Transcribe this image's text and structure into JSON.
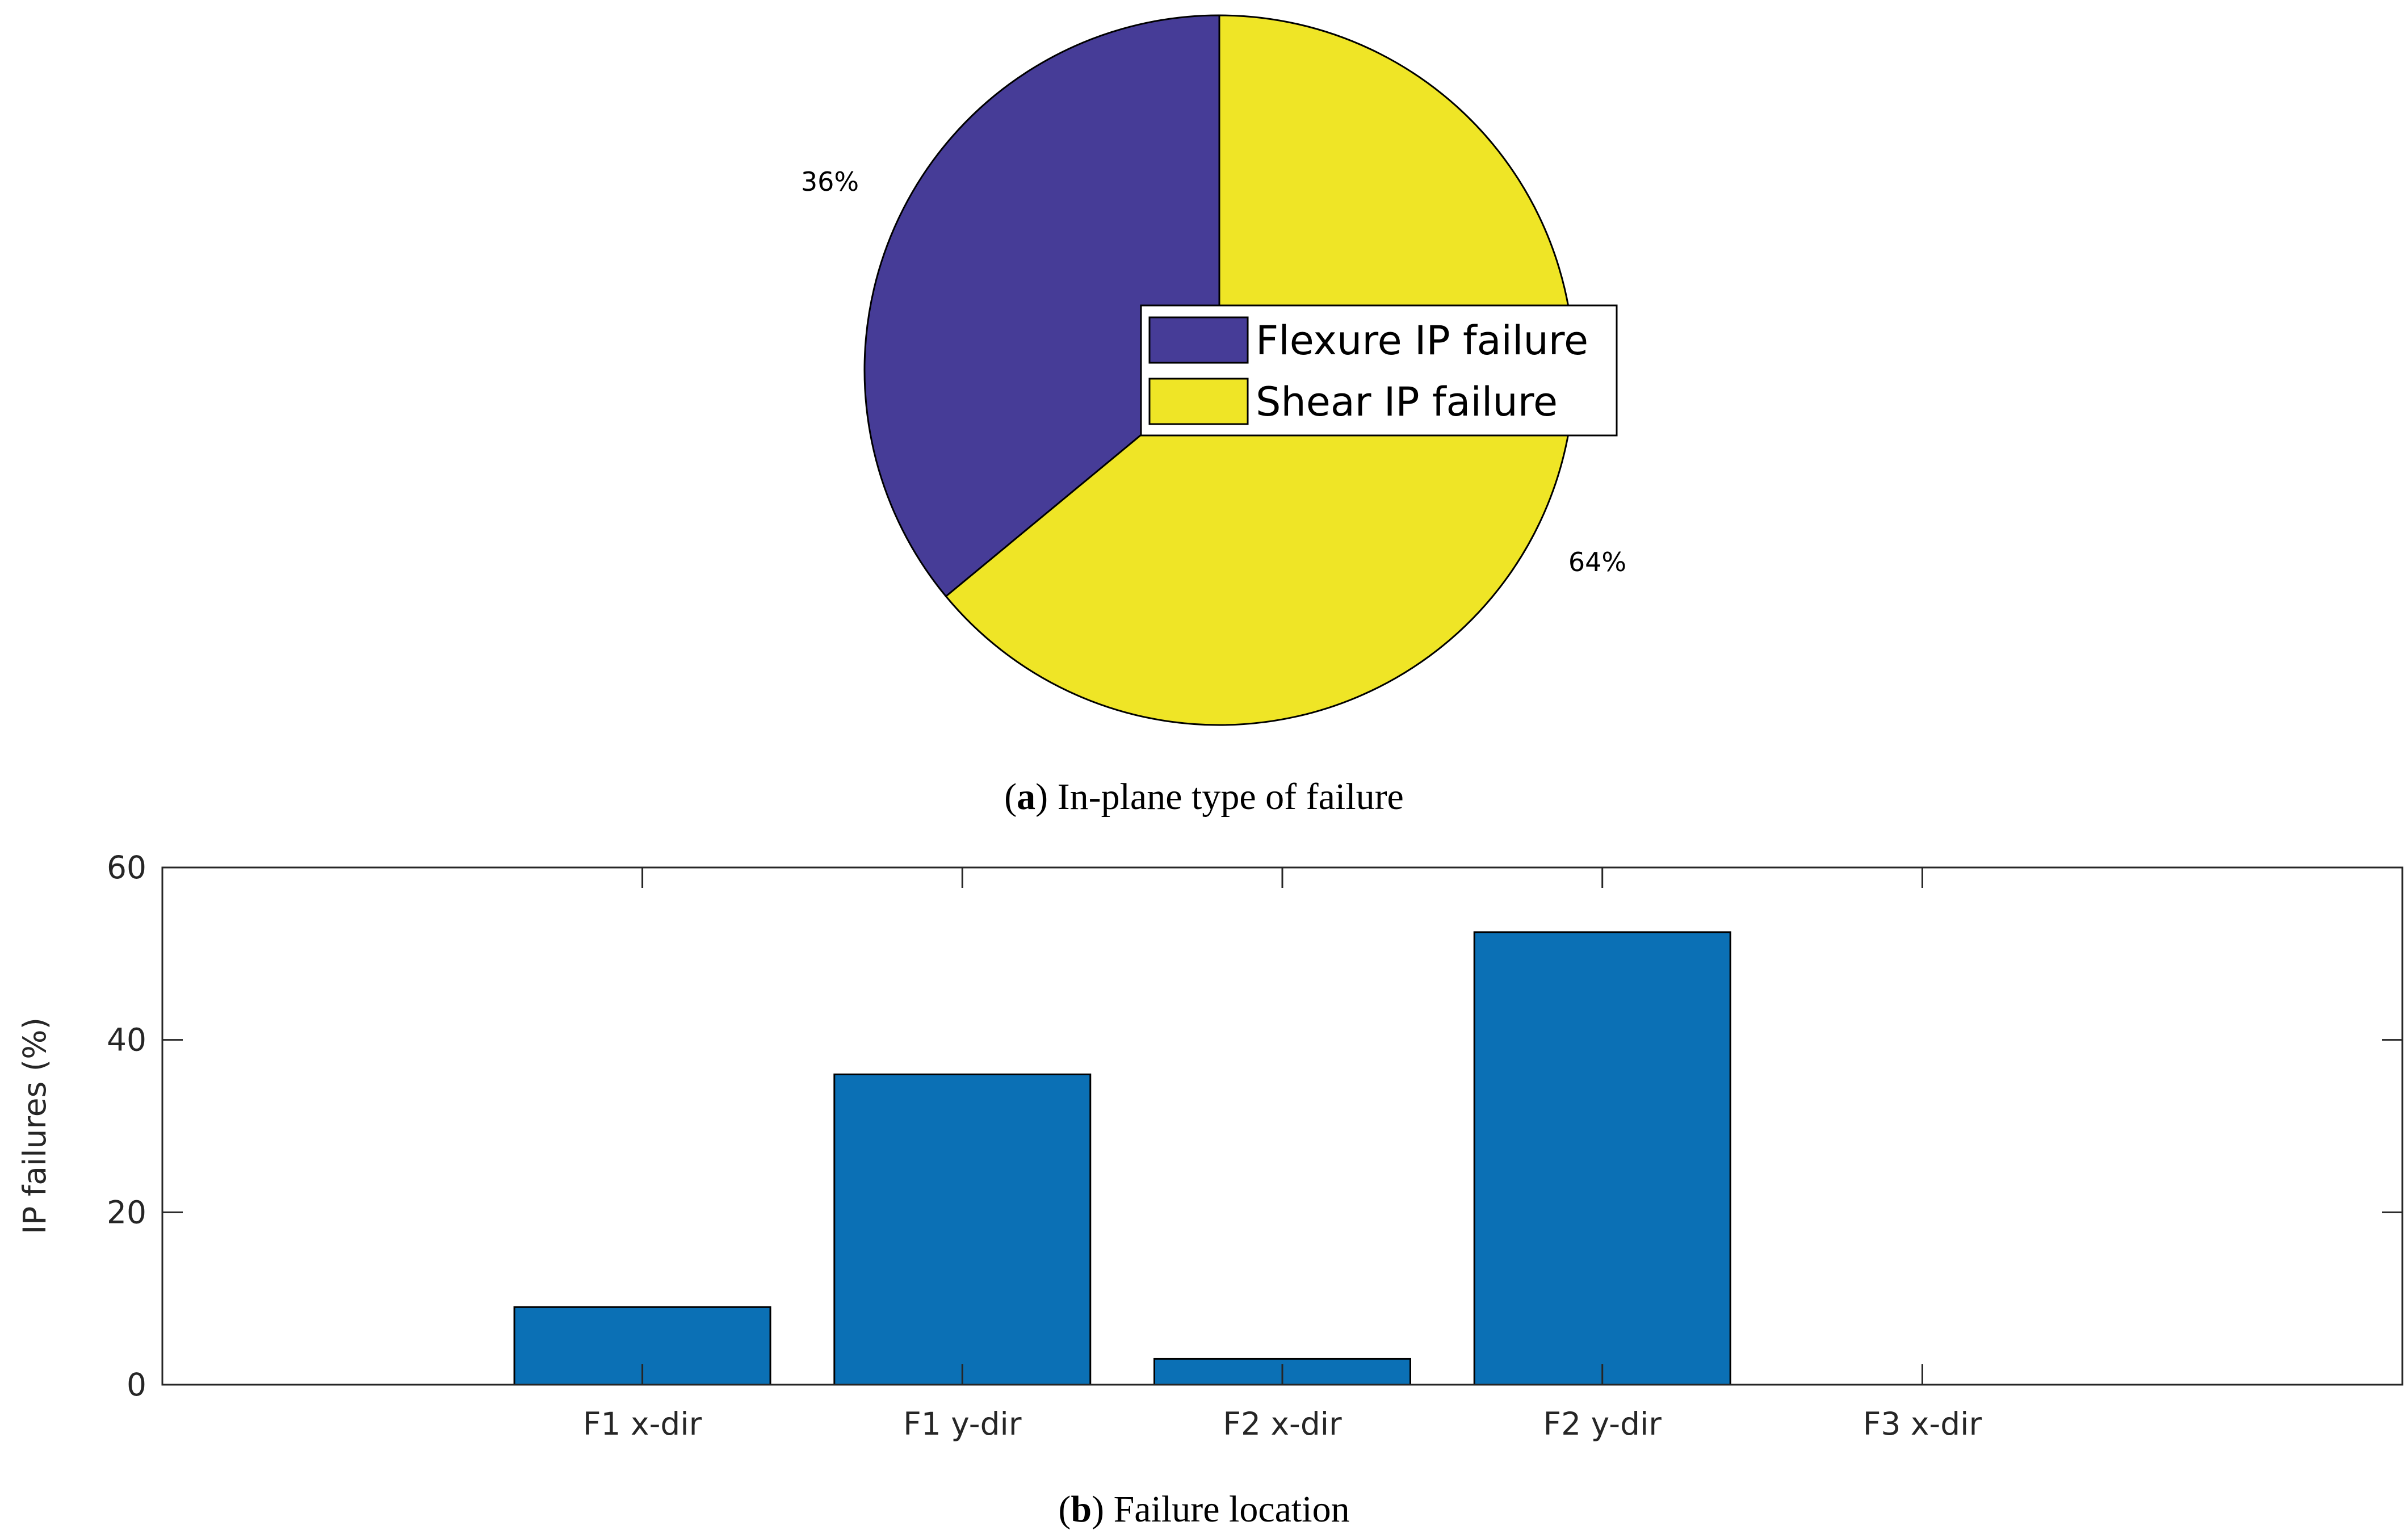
{
  "chart_data": [
    {
      "type": "pie",
      "slices": [
        {
          "label": "Flexure IP failure",
          "value": 36,
          "percent_label": "36%",
          "color": "#463c97"
        },
        {
          "label": "Shear IP failure",
          "value": 64,
          "percent_label": "64%",
          "color": "#efe526"
        }
      ],
      "legend": {
        "entries": [
          "Flexure IP failure",
          "Shear IP failure"
        ],
        "position": "center-right"
      },
      "caption": {
        "letter": "a",
        "text": " In-plane type of failure"
      }
    },
    {
      "type": "bar",
      "categories": [
        "F1 x-dir",
        "F1 y-dir",
        "F2 x-dir",
        "F2 y-dir",
        "F3 x-dir"
      ],
      "values": [
        9,
        36,
        3,
        52.5,
        0
      ],
      "bar_color": "#0b70b5",
      "ylabel": "IP failures (%)",
      "xlabel": "",
      "ylim": [
        0,
        60
      ],
      "yticks": [
        0,
        20,
        40,
        60
      ],
      "grid": false,
      "caption": {
        "letter": "b",
        "text": " Failure location"
      }
    }
  ]
}
